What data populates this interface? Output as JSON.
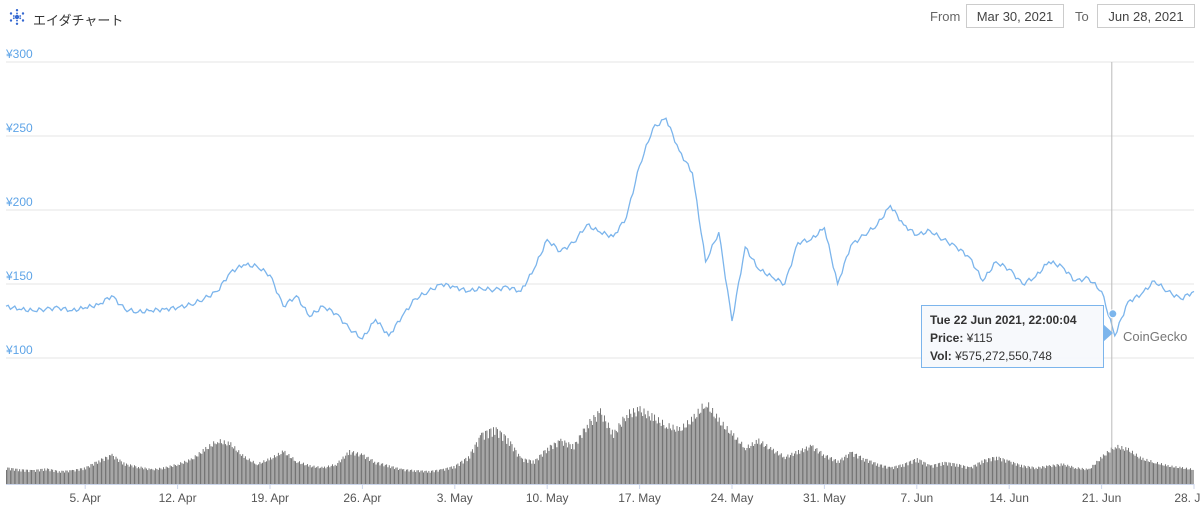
{
  "header": {
    "title": "エイダチャート",
    "from_label": "From",
    "from_value": "Mar 30, 2021",
    "to_label": "To",
    "to_value": "Jun 28, 2021"
  },
  "colors": {
    "price_line": "#7cb5ec",
    "volume_bar": "#666666",
    "grid": "#e6e6e6",
    "axis_text": "#5ea4e7"
  },
  "tooltip": {
    "date": "Tue 22 Jun 2021, 22:00:04",
    "price_label": "Price:",
    "price_value": "¥115",
    "vol_label": "Vol:",
    "vol_value": "¥575,272,550,748"
  },
  "watermark": "CoinGecko",
  "chart_data": {
    "type": "line",
    "title": "エイダチャート",
    "xlabel": "",
    "ylabel": "",
    "ylim": [
      100,
      300
    ],
    "y_ticks": [
      "¥100",
      "¥150",
      "¥200",
      "¥250",
      "¥300"
    ],
    "y_tick_values": [
      100,
      150,
      200,
      250,
      300
    ],
    "x_ticks": [
      "5. Apr",
      "12. Apr",
      "19. Apr",
      "26. Apr",
      "3. May",
      "10. May",
      "17. May",
      "24. May",
      "31. May",
      "7. Jun",
      "14. Jun",
      "21. Jun",
      "28. Jun"
    ],
    "x_tick_dates": [
      "2021-04-05",
      "2021-04-12",
      "2021-04-19",
      "2021-04-26",
      "2021-05-03",
      "2021-05-10",
      "2021-05-17",
      "2021-05-24",
      "2021-05-31",
      "2021-06-07",
      "2021-06-14",
      "2021-06-21",
      "2021-06-28"
    ],
    "x_range": [
      "2021-03-30",
      "2021-06-28"
    ],
    "grid": true,
    "legend": "none",
    "crosshair_x": "2021-06-22",
    "series": [
      {
        "values": [
          [
            "2021-03-30",
            135
          ],
          [
            "2021-03-31",
            133
          ],
          [
            "2021-04-01",
            132
          ],
          [
            "2021-04-02",
            133
          ],
          [
            "2021-04-03",
            134
          ],
          [
            "2021-04-04",
            132
          ],
          [
            "2021-04-05",
            134
          ],
          [
            "2021-04-06",
            136
          ],
          [
            "2021-04-07",
            142
          ],
          [
            "2021-04-08",
            133
          ],
          [
            "2021-04-09",
            131
          ],
          [
            "2021-04-10",
            132
          ],
          [
            "2021-04-11",
            133
          ],
          [
            "2021-04-12",
            134
          ],
          [
            "2021-04-13",
            136
          ],
          [
            "2021-04-14",
            140
          ],
          [
            "2021-04-15",
            145
          ],
          [
            "2021-04-16",
            158
          ],
          [
            "2021-04-17",
            163
          ],
          [
            "2021-04-18",
            162
          ],
          [
            "2021-04-19",
            156
          ],
          [
            "2021-04-20",
            135
          ],
          [
            "2021-04-21",
            142
          ],
          [
            "2021-04-22",
            128
          ],
          [
            "2021-04-23",
            135
          ],
          [
            "2021-04-24",
            130
          ],
          [
            "2021-04-25",
            120
          ],
          [
            "2021-04-26",
            113
          ],
          [
            "2021-04-27",
            126
          ],
          [
            "2021-04-28",
            115
          ],
          [
            "2021-04-29",
            128
          ],
          [
            "2021-04-30",
            140
          ],
          [
            "2021-05-01",
            145
          ],
          [
            "2021-05-02",
            150
          ],
          [
            "2021-05-03",
            148
          ],
          [
            "2021-05-04",
            145
          ],
          [
            "2021-05-05",
            147
          ],
          [
            "2021-05-06",
            146
          ],
          [
            "2021-05-07",
            148
          ],
          [
            "2021-05-08",
            145
          ],
          [
            "2021-05-09",
            160
          ],
          [
            "2021-05-10",
            180
          ],
          [
            "2021-05-11",
            172
          ],
          [
            "2021-05-12",
            178
          ],
          [
            "2021-05-13",
            190
          ],
          [
            "2021-05-14",
            185
          ],
          [
            "2021-05-15",
            182
          ],
          [
            "2021-05-16",
            195
          ],
          [
            "2021-05-17",
            230
          ],
          [
            "2021-05-18",
            255
          ],
          [
            "2021-05-19",
            262
          ],
          [
            "2021-05-20",
            240
          ],
          [
            "2021-05-21",
            225
          ],
          [
            "2021-05-22",
            165
          ],
          [
            "2021-05-23",
            185
          ],
          [
            "2021-05-24",
            125
          ],
          [
            "2021-05-25",
            175
          ],
          [
            "2021-05-26",
            160
          ],
          [
            "2021-05-27",
            155
          ],
          [
            "2021-05-28",
            150
          ],
          [
            "2021-05-29",
            178
          ],
          [
            "2021-05-30",
            180
          ],
          [
            "2021-05-31",
            188
          ],
          [
            "2021-06-01",
            150
          ],
          [
            "2021-06-02",
            176
          ],
          [
            "2021-06-03",
            183
          ],
          [
            "2021-06-04",
            190
          ],
          [
            "2021-06-05",
            203
          ],
          [
            "2021-06-06",
            190
          ],
          [
            "2021-06-07",
            183
          ],
          [
            "2021-06-08",
            186
          ],
          [
            "2021-06-09",
            180
          ],
          [
            "2021-06-10",
            175
          ],
          [
            "2021-06-11",
            168
          ],
          [
            "2021-06-12",
            152
          ],
          [
            "2021-06-13",
            165
          ],
          [
            "2021-06-14",
            160
          ],
          [
            "2021-06-15",
            150
          ],
          [
            "2021-06-16",
            155
          ],
          [
            "2021-06-17",
            165
          ],
          [
            "2021-06-18",
            162
          ],
          [
            "2021-06-19",
            152
          ],
          [
            "2021-06-20",
            154
          ],
          [
            "2021-06-21",
            145
          ],
          [
            "2021-06-22",
            115
          ],
          [
            "2021-06-23",
            138
          ],
          [
            "2021-06-24",
            143
          ],
          [
            "2021-06-25",
            152
          ],
          [
            "2021-06-26",
            145
          ],
          [
            "2021-06-27",
            140
          ],
          [
            "2021-06-28",
            145
          ]
        ]
      }
    ],
    "volume": [
      [
        "2021-03-30",
        18
      ],
      [
        "2021-03-31",
        16
      ],
      [
        "2021-04-01",
        15
      ],
      [
        "2021-04-02",
        17
      ],
      [
        "2021-04-03",
        14
      ],
      [
        "2021-04-04",
        15
      ],
      [
        "2021-04-05",
        18
      ],
      [
        "2021-04-06",
        26
      ],
      [
        "2021-04-07",
        32
      ],
      [
        "2021-04-08",
        22
      ],
      [
        "2021-04-09",
        19
      ],
      [
        "2021-04-10",
        16
      ],
      [
        "2021-04-11",
        18
      ],
      [
        "2021-04-12",
        22
      ],
      [
        "2021-04-13",
        27
      ],
      [
        "2021-04-14",
        38
      ],
      [
        "2021-04-15",
        48
      ],
      [
        "2021-04-16",
        44
      ],
      [
        "2021-04-17",
        30
      ],
      [
        "2021-04-18",
        22
      ],
      [
        "2021-04-19",
        28
      ],
      [
        "2021-04-20",
        36
      ],
      [
        "2021-04-21",
        25
      ],
      [
        "2021-04-22",
        20
      ],
      [
        "2021-04-23",
        18
      ],
      [
        "2021-04-24",
        22
      ],
      [
        "2021-04-25",
        36
      ],
      [
        "2021-04-26",
        32
      ],
      [
        "2021-04-27",
        24
      ],
      [
        "2021-04-28",
        20
      ],
      [
        "2021-04-29",
        16
      ],
      [
        "2021-04-30",
        15
      ],
      [
        "2021-05-01",
        14
      ],
      [
        "2021-05-02",
        16
      ],
      [
        "2021-05-03",
        20
      ],
      [
        "2021-05-04",
        30
      ],
      [
        "2021-05-05",
        55
      ],
      [
        "2021-05-06",
        62
      ],
      [
        "2021-05-07",
        50
      ],
      [
        "2021-05-08",
        28
      ],
      [
        "2021-05-09",
        25
      ],
      [
        "2021-05-10",
        40
      ],
      [
        "2021-05-11",
        48
      ],
      [
        "2021-05-12",
        42
      ],
      [
        "2021-05-13",
        66
      ],
      [
        "2021-05-14",
        80
      ],
      [
        "2021-05-15",
        55
      ],
      [
        "2021-05-16",
        78
      ],
      [
        "2021-05-17",
        82
      ],
      [
        "2021-05-18",
        74
      ],
      [
        "2021-05-19",
        65
      ],
      [
        "2021-05-20",
        60
      ],
      [
        "2021-05-21",
        72
      ],
      [
        "2021-05-22",
        90
      ],
      [
        "2021-05-23",
        70
      ],
      [
        "2021-05-24",
        55
      ],
      [
        "2021-05-25",
        40
      ],
      [
        "2021-05-26",
        48
      ],
      [
        "2021-05-27",
        38
      ],
      [
        "2021-05-28",
        30
      ],
      [
        "2021-05-29",
        36
      ],
      [
        "2021-05-30",
        42
      ],
      [
        "2021-05-31",
        32
      ],
      [
        "2021-06-01",
        25
      ],
      [
        "2021-06-02",
        35
      ],
      [
        "2021-06-03",
        28
      ],
      [
        "2021-06-04",
        22
      ],
      [
        "2021-06-05",
        18
      ],
      [
        "2021-06-06",
        22
      ],
      [
        "2021-06-07",
        28
      ],
      [
        "2021-06-08",
        20
      ],
      [
        "2021-06-09",
        24
      ],
      [
        "2021-06-10",
        22
      ],
      [
        "2021-06-11",
        18
      ],
      [
        "2021-06-12",
        26
      ],
      [
        "2021-06-13",
        30
      ],
      [
        "2021-06-14",
        25
      ],
      [
        "2021-06-15",
        20
      ],
      [
        "2021-06-16",
        18
      ],
      [
        "2021-06-17",
        20
      ],
      [
        "2021-06-18",
        22
      ],
      [
        "2021-06-19",
        18
      ],
      [
        "2021-06-20",
        16
      ],
      [
        "2021-06-21",
        30
      ],
      [
        "2021-06-22",
        42
      ],
      [
        "2021-06-23",
        38
      ],
      [
        "2021-06-24",
        28
      ],
      [
        "2021-06-25",
        24
      ],
      [
        "2021-06-26",
        20
      ],
      [
        "2021-06-27",
        18
      ],
      [
        "2021-06-28",
        16
      ]
    ]
  }
}
